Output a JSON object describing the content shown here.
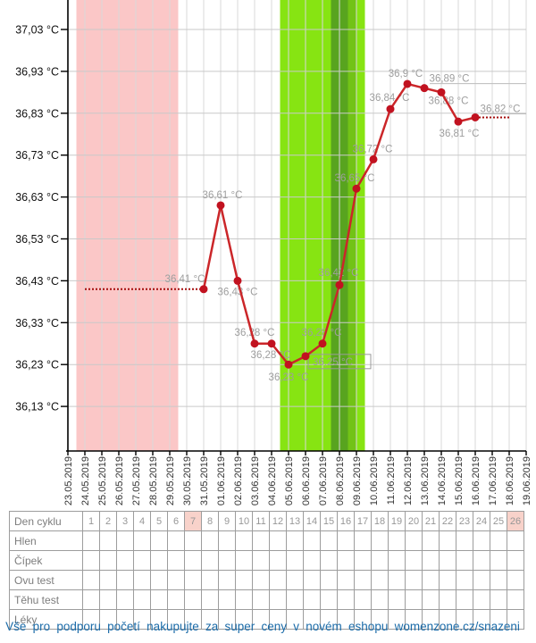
{
  "chart_data": {
    "type": "line",
    "title": "",
    "ylabel": "Teplota",
    "y_axis": {
      "unit": "°C",
      "max": 37.03,
      "min": 36.13,
      "step": 0.1,
      "tick_labels": [
        "37,03 °C",
        "36,93 °C",
        "36,83 °C",
        "36,73 °C",
        "36,63 °C",
        "36,53 °C",
        "36,43 °C",
        "36,33 °C",
        "36,23 °C",
        "36,13 °C"
      ]
    },
    "x_dates": [
      "23.05.2019",
      "24.05.2019",
      "25.05.2019",
      "26.05.2019",
      "27.05.2019",
      "28.05.2019",
      "29.05.2019",
      "30.05.2019",
      "31.05.2019",
      "01.06.2019",
      "02.06.2019",
      "03.06.2019",
      "04.06.2019",
      "05.06.2019",
      "06.06.2019",
      "07.06.2019",
      "08.06.2019",
      "09.06.2019",
      "10.06.2019",
      "11.06.2019",
      "12.06.2019",
      "13.06.2019",
      "14.06.2019",
      "15.06.2019",
      "16.06.2019",
      "17.06.2019",
      "18.06.2019",
      "19.06.2019"
    ],
    "bands": [
      {
        "name": "menstruation",
        "from": "24.05.2019",
        "to": "29.05.2019",
        "from_idx": 0.5,
        "to_idx": 6.5,
        "color": "#fbc7c7"
      },
      {
        "name": "fertile-window",
        "from": "05.06.2019",
        "to": "09.06.2019",
        "from_idx": 12.5,
        "to_idx": 17.5,
        "color": "#87e412"
      },
      {
        "name": "ovulation-day",
        "from": "08.06.2019",
        "to": "08.06.2019",
        "from_idx": 15.5,
        "to_idx": 16.5,
        "color": "#58a41f"
      },
      {
        "name": "post-ovulation",
        "from": "09.06.2019",
        "to": "09.06.2019",
        "from_idx": 16.5,
        "to_idx": 17.0,
        "color": "#72c316"
      }
    ],
    "series": [
      {
        "name": "bbt-temperature",
        "line_color": "#cb2629",
        "point_color": "#c11220",
        "label_color": "#9e9e9e",
        "points": [
          {
            "date": "31.05.2019",
            "temp": 36.41,
            "label": "36,41 °C",
            "dx": -21,
            "dy": -12
          },
          {
            "date": "01.06.2019",
            "temp": 36.61,
            "label": "36,61 °C",
            "dx": 2,
            "dy": -12
          },
          {
            "date": "02.06.2019",
            "temp": 36.43,
            "label": "36,43 °C",
            "dx": 0,
            "dy": 12
          },
          {
            "date": "03.06.2019",
            "temp": 36.28,
            "label": "36,28 °C",
            "dx": 0,
            "dy": -13
          },
          {
            "date": "04.06.2019",
            "temp": 36.28,
            "label": "36,28 °C",
            "dx": -1,
            "dy": 12
          },
          {
            "date": "05.06.2019",
            "temp": 36.23,
            "label": "36,23 °C",
            "dx": 0,
            "dy": 14
          },
          {
            "date": "06.06.2019",
            "temp": 36.25,
            "label": "36,25 °C",
            "boxed": true
          },
          {
            "date": "07.06.2019",
            "temp": 36.28,
            "label": "36,28 °C",
            "dx": -1,
            "dy": -13
          },
          {
            "date": "08.06.2019",
            "temp": 36.42,
            "label": "36,42 °C",
            "dx": -1,
            "dy": -14
          },
          {
            "date": "09.06.2019",
            "temp": 36.65,
            "label": "36,65 °C",
            "dx": -2,
            "dy": -12
          },
          {
            "date": "10.06.2019",
            "temp": 36.72,
            "label": "36,72 °C",
            "dx": -1,
            "dy": -12
          },
          {
            "date": "11.06.2019",
            "temp": 36.84,
            "label": "36,84 °C",
            "dx": -1,
            "dy": -13
          },
          {
            "date": "12.06.2019",
            "temp": 36.9,
            "label": "36,9 °C",
            "dx": -2,
            "dy": -12
          },
          {
            "date": "13.06.2019",
            "temp": 36.89,
            "label": "36,89 °C",
            "dx": 28,
            "dy": -11,
            "underline": true
          },
          {
            "date": "14.06.2019",
            "temp": 36.88,
            "label": "36,88 °C",
            "dx": 8,
            "dy": 9
          },
          {
            "date": "15.06.2019",
            "temp": 36.81,
            "label": "36,81 °C",
            "dx": 1,
            "dy": 13
          },
          {
            "date": "16.06.2019",
            "temp": 36.82,
            "label": "36,82 °C",
            "dx": 28,
            "dy": -10,
            "underline": true
          }
        ]
      }
    ],
    "dotted_segments": [
      {
        "name": "no-data-before",
        "from": "24.05.2019",
        "to": "31.05.2019",
        "temp": 36.41
      },
      {
        "name": "projection-after",
        "from": "16.06.2019",
        "to": "18.06.2019",
        "temp": 36.82
      }
    ],
    "colors": {
      "grid_vertical": "#d8d8d8",
      "grid_horizontal": "#c9c9c9",
      "axis": "#000000",
      "date_label": "#333333",
      "y_label": "#111111",
      "dotted_line": "#a50d0d",
      "leader_line": "#bcbcbc",
      "tooltip_border": "#9a9a9a"
    }
  },
  "table": {
    "rows": [
      {
        "label": "Den cyklu",
        "type": "days"
      },
      {
        "label": "Hlen",
        "type": "empty"
      },
      {
        "label": "Čípek",
        "type": "empty"
      },
      {
        "label": "Ovu test",
        "type": "empty"
      },
      {
        "label": "Těhu test",
        "type": "empty"
      },
      {
        "label": "Léky",
        "type": "empty"
      }
    ],
    "days": [
      "1",
      "2",
      "3",
      "4",
      "5",
      "6",
      "7",
      "8",
      "9",
      "10",
      "11",
      "12",
      "13",
      "14",
      "15",
      "16",
      "17",
      "18",
      "19",
      "20",
      "21",
      "22",
      "23",
      "24",
      "25",
      "26"
    ],
    "highlighted_days": [
      "7",
      "26"
    ],
    "highlight_color": "#f8d2ca"
  },
  "footer": {
    "text": "Vše pro podporu početí nakupujte za super ceny v novém eshopu womenzone.cz/snazeni"
  }
}
